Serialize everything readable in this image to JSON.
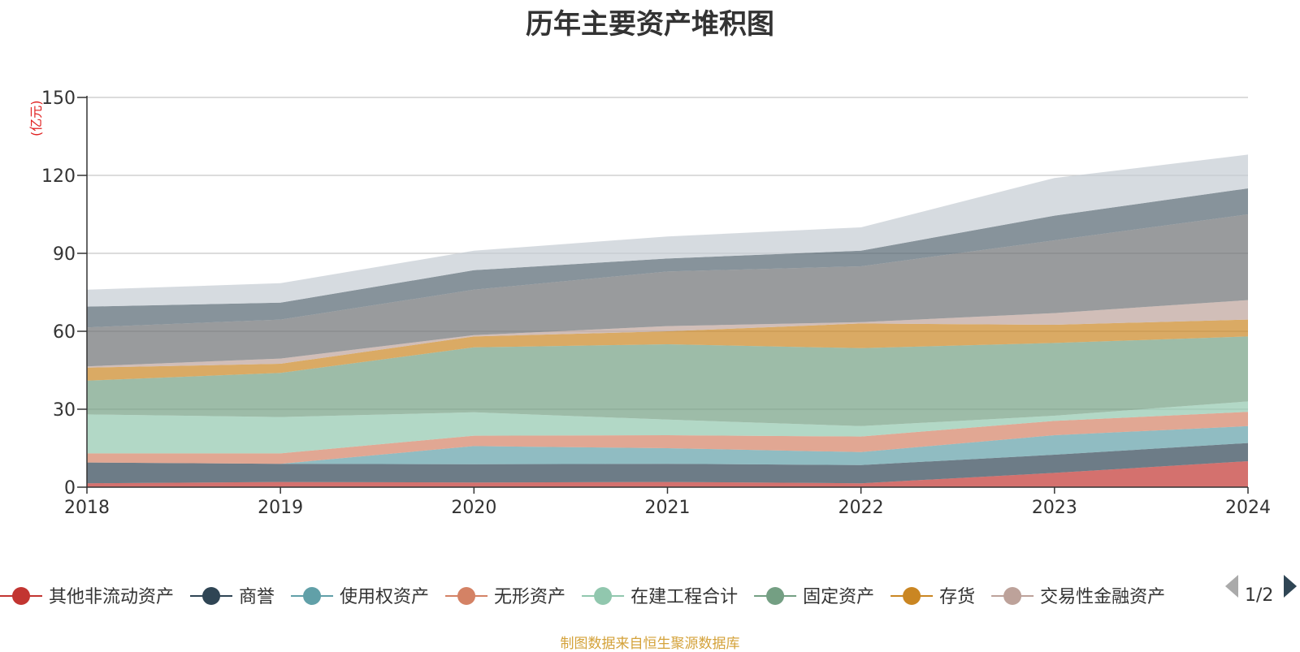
{
  "title": "历年主要资产堆积图",
  "source": "制图数据来自恒生聚源数据库",
  "pager": {
    "text": "1/2"
  },
  "chart_data": {
    "type": "area",
    "stacked": true,
    "title": "历年主要资产堆积图",
    "unit": "(亿元)",
    "x": [
      "2018",
      "2019",
      "2020",
      "2021",
      "2022",
      "2023",
      "2024"
    ],
    "ylim": [
      0,
      150
    ],
    "yticks": [
      0,
      30,
      60,
      90,
      120,
      150
    ],
    "grid": true,
    "legend_position": "bottom",
    "series": [
      {
        "name": "其他非流动资产",
        "color": "#c23531",
        "values": [
          1.5,
          2.0,
          1.8,
          2.0,
          1.5,
          5.5,
          10.0
        ]
      },
      {
        "name": "商誉",
        "color": "#2f4554",
        "values": [
          8.0,
          7.0,
          7.0,
          7.0,
          7.0,
          7.0,
          7.0
        ]
      },
      {
        "name": "使用权资产",
        "color": "#61a0a8",
        "values": [
          0.0,
          0.0,
          7.0,
          6.0,
          5.0,
          7.5,
          6.5
        ]
      },
      {
        "name": "无形资产",
        "color": "#d48265",
        "values": [
          3.5,
          4.0,
          4.0,
          5.0,
          6.0,
          5.5,
          5.5
        ]
      },
      {
        "name": "在建工程合计",
        "color": "#91c7ae",
        "values": [
          15.0,
          14.0,
          9.0,
          6.0,
          4.0,
          2.0,
          4.0
        ]
      },
      {
        "name": "固定资产",
        "color": "#749f83",
        "values": [
          13.0,
          17.0,
          25.0,
          29.0,
          30.0,
          28.0,
          25.0
        ]
      },
      {
        "name": "存货",
        "color": "#ca8622",
        "values": [
          5.0,
          3.5,
          4.2,
          5.0,
          9.5,
          7.0,
          6.5
        ]
      },
      {
        "name": "交易性金融资产",
        "color": "#bda29a",
        "values": [
          0.5,
          2.0,
          0.5,
          2.0,
          0.5,
          4.5,
          7.5
        ]
      },
      {
        "name": "",
        "color": "#6e7074",
        "values": [
          15.0,
          15.0,
          17.5,
          21.0,
          21.5,
          28.0,
          33.0
        ]
      },
      {
        "name": "",
        "color": "#546570",
        "values": [
          8.0,
          6.5,
          7.5,
          5.0,
          6.0,
          9.5,
          10.0
        ]
      },
      {
        "name": "",
        "color": "#c4ccd3",
        "values": [
          6.5,
          7.5,
          7.5,
          8.5,
          9.0,
          14.5,
          13.0
        ]
      }
    ]
  }
}
